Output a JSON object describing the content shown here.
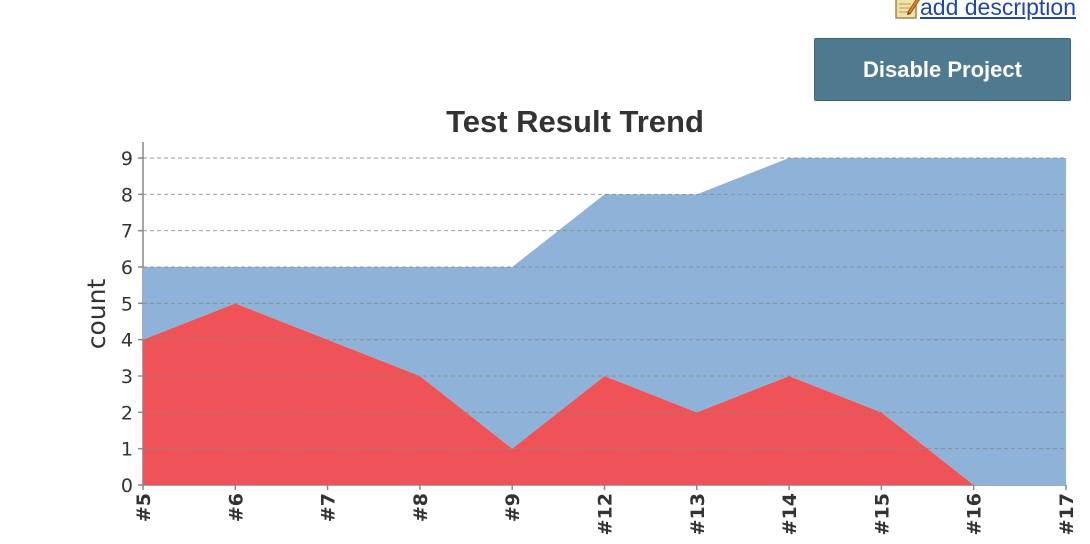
{
  "header": {
    "add_description_label": "add description",
    "disable_project_label": "Disable Project"
  },
  "icons": {
    "edit": "edit-note-icon"
  },
  "chart_data": {
    "type": "area",
    "title": "Test Result Trend",
    "ylabel": "count",
    "xlabel": "",
    "categories": [
      "#5",
      "#6",
      "#7",
      "#8",
      "#9",
      "#12",
      "#13",
      "#14",
      "#15",
      "#16",
      "#17"
    ],
    "ylim": [
      0,
      9
    ],
    "yticks": [
      0,
      1,
      2,
      3,
      4,
      5,
      6,
      7,
      8,
      9
    ],
    "grid": true,
    "stacked": true,
    "series": [
      {
        "values": [
          4,
          5,
          4,
          3,
          1,
          3,
          2,
          3,
          2,
          0,
          0
        ],
        "color": "#ef5257"
      },
      {
        "values": [
          2,
          1,
          2,
          3,
          5,
          5,
          6,
          6,
          7,
          9,
          9
        ],
        "color": "#8eb2d8"
      }
    ]
  }
}
